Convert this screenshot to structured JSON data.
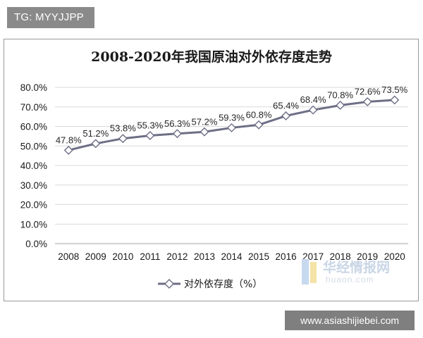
{
  "tag": {
    "text": "TG: MYYJJPP"
  },
  "footer": {
    "url": "www.asiashijiebei.com"
  },
  "watermark": {
    "cn": "华经情报网",
    "en": "huaon.com"
  },
  "colors": {
    "line": "#6e6e86",
    "grid": "#d9d9d9",
    "marker_fill": "#ffffff"
  },
  "chart_data": {
    "type": "line",
    "title": "2008-2020年我国原油对外依存度走势",
    "xlabel": "",
    "ylabel": "",
    "categories": [
      "2008",
      "2009",
      "2010",
      "2011",
      "2012",
      "2013",
      "2014",
      "2015",
      "2016",
      "2017",
      "2018",
      "2019",
      "2020"
    ],
    "series": [
      {
        "name": "对外依存度（%）",
        "values": [
          47.8,
          51.2,
          53.8,
          55.3,
          56.3,
          57.2,
          59.3,
          60.8,
          65.4,
          68.4,
          70.8,
          72.6,
          73.5
        ],
        "labels": [
          "47.8%",
          "51.2%",
          "53.8%",
          "55.3%",
          "56.3%",
          "57.2%",
          "59.3%",
          "60.8%",
          "65.4%",
          "68.4%",
          "70.8%",
          "72.6%",
          "73.5%"
        ]
      }
    ],
    "ylim": [
      0,
      80
    ],
    "yticks": [
      "0.0%",
      "10.0%",
      "20.0%",
      "30.0%",
      "40.0%",
      "50.0%",
      "60.0%",
      "70.0%",
      "80.0%"
    ],
    "grid": true,
    "legend_position": "bottom",
    "marker": "diamond"
  }
}
